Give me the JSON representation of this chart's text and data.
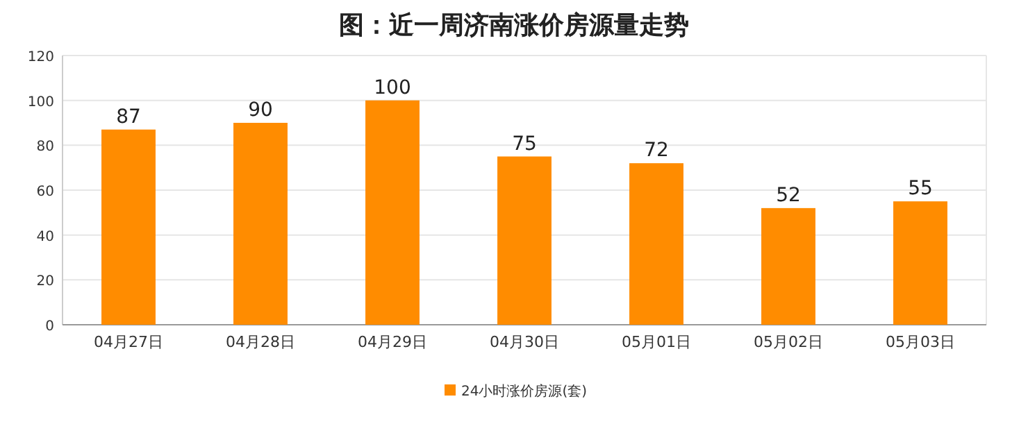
{
  "chart_data": {
    "type": "bar",
    "title": "图：近一周济南涨价房源量走势",
    "categories": [
      "04月27日",
      "04月28日",
      "04月29日",
      "04月30日",
      "05月01日",
      "05月02日",
      "05月03日"
    ],
    "series": [
      {
        "name": "24小时涨价房源(套)",
        "color": "#ff8c00",
        "values": [
          87,
          90,
          100,
          75,
          72,
          52,
          55
        ]
      }
    ],
    "ylim": [
      0,
      120
    ],
    "yticks": [
      0,
      20,
      40,
      60,
      80,
      100,
      120
    ],
    "grid": "y",
    "legend": "bottom",
    "data_labels": true
  }
}
